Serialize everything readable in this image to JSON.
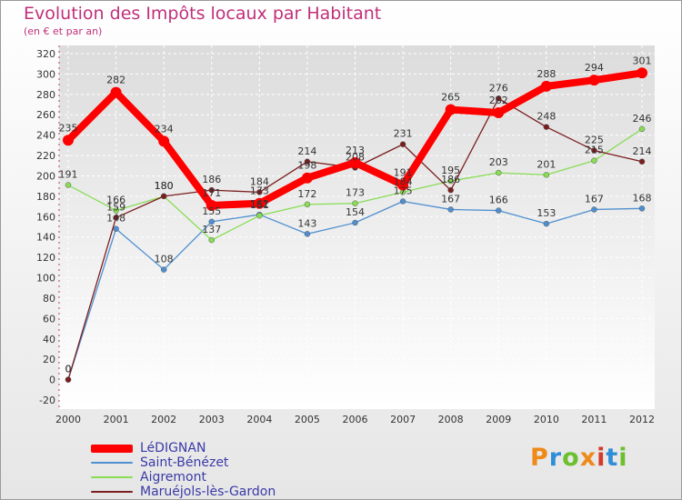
{
  "chart_data": {
    "type": "line",
    "title": "Evolution des Impôts locaux par Habitant",
    "subtitle": "(en € et par an)",
    "xlabel": "",
    "ylabel": "",
    "categories": [
      "2000",
      "2001",
      "2002",
      "2003",
      "2004",
      "2005",
      "2006",
      "2007",
      "2008",
      "2009",
      "2010",
      "2011",
      "2012"
    ],
    "ylim": [
      -20,
      320
    ],
    "ytick_step": 20,
    "grid": true,
    "legend_position": "bottom-left",
    "series": [
      {
        "name": "LéDIGNAN",
        "color": "#ff0000",
        "emphasis": true,
        "values": [
          235,
          282,
          234,
          171,
          173,
          198,
          213,
          191,
          265,
          262,
          288,
          294,
          301
        ],
        "labels": [
          "235",
          "282",
          "234",
          "171",
          "173",
          "198",
          "213",
          "191",
          "265",
          "262",
          "288",
          "294",
          "301"
        ]
      },
      {
        "name": "Saint-Bénézet",
        "color": "#4f8fd0",
        "emphasis": false,
        "values": [
          0,
          148,
          108,
          155,
          162,
          143,
          154,
          175,
          167,
          166,
          153,
          167,
          168
        ],
        "labels": [
          "0",
          "148",
          "108",
          "155",
          "162",
          "143",
          "154",
          "175",
          "167",
          "166",
          "153",
          "167",
          "168"
        ]
      },
      {
        "name": "Aigremont",
        "color": "#88dd55",
        "emphasis": false,
        "values": [
          191,
          166,
          180,
          137,
          161,
          172,
          173,
          184,
          195,
          203,
          201,
          215,
          246
        ],
        "labels": [
          "191",
          "166",
          "180",
          "137",
          "161",
          "172",
          "173",
          "184",
          "195",
          "203",
          "201",
          "215",
          "246"
        ]
      },
      {
        "name": "Maruéjols-lès-Gardon",
        "color": "#7b1e1e",
        "emphasis": false,
        "values": [
          0,
          159,
          180,
          186,
          184,
          214,
          208,
          231,
          186,
          276,
          248,
          225,
          214
        ],
        "labels": [
          "0",
          "159",
          "180",
          "186",
          "184",
          "214",
          "208",
          "231",
          "186",
          "276",
          "248",
          "225",
          "214"
        ]
      }
    ]
  },
  "brand": {
    "text": "Proxiti",
    "colors": [
      "#ef8a1a",
      "#2f8ed8",
      "#6cbf2e",
      "#ef8a1a",
      "#d63a2a",
      "#2f8ed8",
      "#6cbf2e"
    ]
  }
}
